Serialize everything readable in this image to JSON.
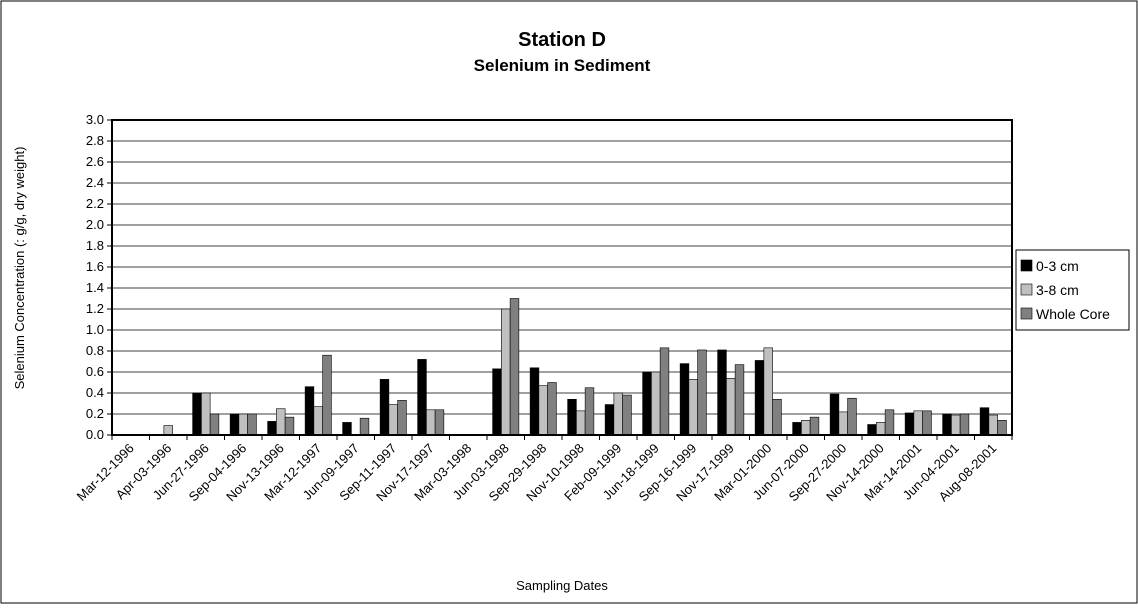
{
  "chart_data": {
    "type": "bar",
    "title": "Station D",
    "subtitle": "Selenium in Sediment",
    "x_label": "Sampling Dates",
    "y_label": "Selenium Concentration (: g/g, dry weight)",
    "categories": [
      "Mar-12-1996",
      "Apr-03-1996",
      "Jun-27-1996",
      "Sep-04-1996",
      "Nov-13-1996",
      "Mar-12-1997",
      "Jun-09-1997",
      "Sep-11-1997",
      "Nov-17-1997",
      "Mar-03-1998",
      "Jun-03-1998",
      "Sep-29-1998",
      "Nov-10-1998",
      "Feb-09-1999",
      "Jun-18-1999",
      "Sep-16-1999",
      "Nov-17-1999",
      "Mar-01-2000",
      "Jun-07-2000",
      "Sep-27-2000",
      "Nov-14-2000",
      "Mar-14-2001",
      "Jun-04-2001",
      "Aug-08-2001"
    ],
    "series": [
      {
        "name": "0-3 cm",
        "color": "#000000",
        "values": [
          0,
          0,
          0.4,
          0.2,
          0.13,
          0.46,
          0.12,
          0.53,
          0.72,
          0,
          0.63,
          0.64,
          0.34,
          0.29,
          0.6,
          0.68,
          0.81,
          0.71,
          0.12,
          0.39,
          0.1,
          0.21,
          0.2,
          0.26
        ]
      },
      {
        "name": "3-8 cm",
        "color": "#c0c0c0",
        "values": [
          0,
          0.09,
          0.4,
          0.2,
          0.25,
          0.27,
          0,
          0.29,
          0.24,
          0,
          1.2,
          0.47,
          0.23,
          0.4,
          0.6,
          0.53,
          0.54,
          0.83,
          0.14,
          0.22,
          0.12,
          0.23,
          0.19,
          0.19
        ]
      },
      {
        "name": "Whole Core",
        "color": "#808080",
        "values": [
          0,
          0,
          0.2,
          0.2,
          0.17,
          0.76,
          0.16,
          0.33,
          0.24,
          0,
          1.3,
          0.5,
          0.45,
          0.38,
          0.83,
          0.81,
          0.67,
          0.34,
          0.17,
          0.35,
          0.24,
          0.23,
          0.2,
          0.14
        ]
      }
    ],
    "ylim": [
      0,
      3.0
    ],
    "yticks": [
      {
        "value": 0,
        "label": "0.0"
      },
      {
        "value": 0.2,
        "label": "0.2"
      },
      {
        "value": 0.4,
        "label": "0.4"
      },
      {
        "value": 0.6,
        "label": "0.6"
      },
      {
        "value": 0.8,
        "label": "0.8"
      },
      {
        "value": 1,
        "label": "1.0"
      },
      {
        "value": 1.2,
        "label": "1.2"
      },
      {
        "value": 1.4,
        "label": "1.4"
      },
      {
        "value": 1.6,
        "label": "1.6"
      },
      {
        "value": 1.8,
        "label": "1.8"
      },
      {
        "value": 2,
        "label": "2.0"
      },
      {
        "value": 2.2,
        "label": "2.2"
      },
      {
        "value": 2.4,
        "label": "2.4"
      },
      {
        "value": 2.6,
        "label": "2.6"
      },
      {
        "value": 2.8,
        "label": "2.8"
      },
      {
        "value": 3,
        "label": "3.0"
      }
    ],
    "grid": true,
    "legend": "right"
  }
}
